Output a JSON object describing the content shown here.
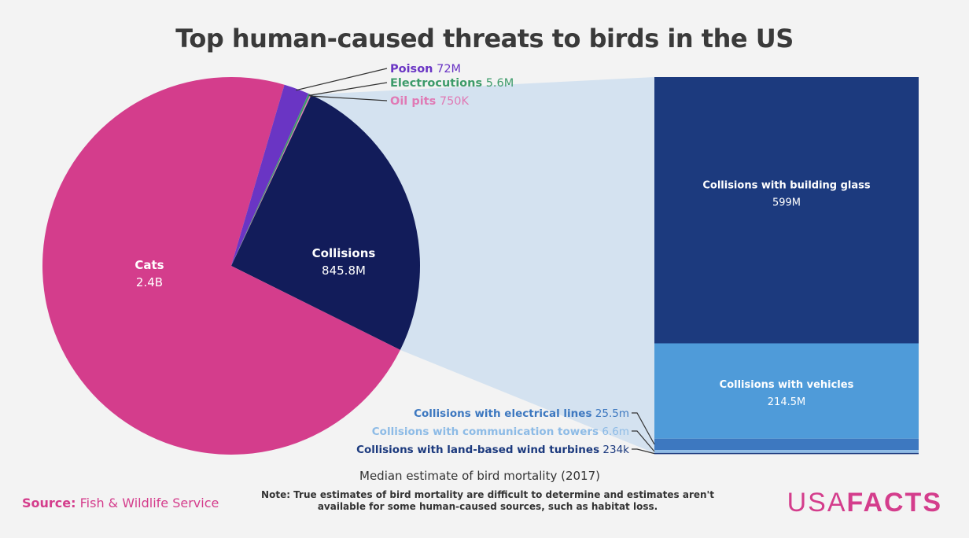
{
  "title": "Top human-caused threats to birds in the US",
  "subtitle": "Median estimate of bird mortality (2017)",
  "note": "Note: True estimates of bird mortality are difficult to determine and estimates aren't available for some human-caused sources, such as habitat loss.",
  "source": {
    "label": "Source:",
    "text": "Fish & Wildlife Service"
  },
  "logo": {
    "part1": "USA",
    "part2": "FACTS"
  },
  "colors": {
    "cats": "#d43d8c",
    "collisions": "#121c5a",
    "poison": "#6a35c4",
    "electrocutions": "#3d9b6a",
    "oil_pits": "#e07ab5",
    "building_glass": "#1c3a7e",
    "vehicles": "#4f9bd9",
    "electrical_lines": "#3d78c0",
    "communication_towers": "#8dbbe6",
    "wind_turbines": "#1c3a7e",
    "background": "#f3f3f3"
  },
  "chart_data": [
    {
      "type": "pie",
      "title": "Top human-caused threats to birds in the US",
      "slices": [
        {
          "key": "collisions",
          "label": "Collisions",
          "display": "845.8M",
          "value": 845.8
        },
        {
          "key": "cats",
          "label": "Cats",
          "display": "2.4B",
          "value": 2400
        },
        {
          "key": "poison",
          "label": "Poison",
          "display": "72M",
          "value": 72
        },
        {
          "key": "electrocutions",
          "label": "Electrocutions",
          "display": "5.6M",
          "value": 5.6
        },
        {
          "key": "oil_pits",
          "label": "Oil pits",
          "display": "750K",
          "value": 0.75
        }
      ]
    },
    {
      "type": "bar",
      "stacked": true,
      "title": "Collisions",
      "segments": [
        {
          "key": "building_glass",
          "label": "Collisions with building glass",
          "display": "599M",
          "value": 599
        },
        {
          "key": "vehicles",
          "label": "Collisions with vehicles",
          "display": "214.5M",
          "value": 214.5
        },
        {
          "key": "electrical_lines",
          "label": "Collisions with electrical lines",
          "display": "25.5m",
          "value": 25.5
        },
        {
          "key": "communication_towers",
          "label": "Collisions with communication towers",
          "display": "6.6m",
          "value": 6.6
        },
        {
          "key": "wind_turbines",
          "label": "Collisions with land-based wind turbines",
          "display": "234k",
          "value": 0.234
        }
      ]
    }
  ]
}
